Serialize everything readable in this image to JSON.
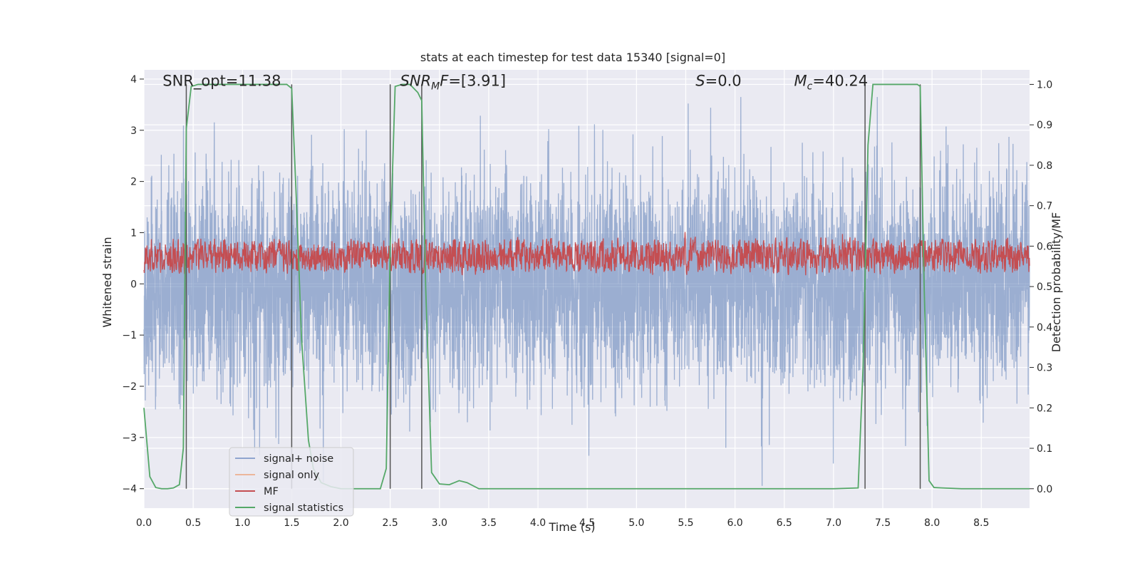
{
  "chart_data": {
    "type": "line",
    "title": "stats at each timestep for test data 15340 [signal=0]",
    "xlabel": "Time (s)",
    "ylabel": "Whitened strain",
    "ylabel_right": "Detection probability/MF",
    "xlim": [
      0.0,
      8.99
    ],
    "ylim": [
      -4.38,
      4.18
    ],
    "ylim_right": [
      -0.048,
      1.036
    ],
    "grid": true,
    "legend_placement": "lower-left",
    "x_ticks": [
      "0.0",
      "0.5",
      "1.0",
      "1.5",
      "2.0",
      "2.5",
      "3.0",
      "3.5",
      "4.0",
      "4.5",
      "5.0",
      "5.5",
      "6.0",
      "6.5",
      "7.0",
      "7.5",
      "8.0",
      "8.5"
    ],
    "y_ticks": [
      "−4",
      "−3",
      "−2",
      "−1",
      "0",
      "1",
      "2",
      "3",
      "4"
    ],
    "y_ticks_values": [
      -4,
      -3,
      -2,
      -1,
      0,
      1,
      2,
      3,
      4
    ],
    "y_right_ticks": [
      "0.0",
      "0.1",
      "0.2",
      "0.3",
      "0.4",
      "0.5",
      "0.6",
      "0.7",
      "0.8",
      "0.9",
      "1.0"
    ],
    "annotations": [
      {
        "id": "snr-opt",
        "parts": [
          {
            "t": "SNR_opt=11.38",
            "style": "normal"
          }
        ],
        "x": 0.19,
        "y": 3.87
      },
      {
        "id": "snr-mf",
        "parts": [
          {
            "t": "SNR",
            "style": "italic"
          },
          {
            "t": "M",
            "style": "italic-sub"
          },
          {
            "t": "F",
            "style": "italic"
          },
          {
            "t": "=[3.91]",
            "style": "normal"
          }
        ],
        "x": 2.6,
        "y": 3.87
      },
      {
        "id": "s-value",
        "parts": [
          {
            "t": "S",
            "style": "italic"
          },
          {
            "t": "=0.0",
            "style": "normal"
          }
        ],
        "x": 5.6,
        "y": 3.87
      },
      {
        "id": "mc-value",
        "parts": [
          {
            "t": "M",
            "style": "italic"
          },
          {
            "t": "c",
            "style": "italic-sub"
          },
          {
            "t": "=40.24",
            "style": "normal"
          }
        ],
        "x": 6.6,
        "y": 3.87
      }
    ],
    "vertical_markers": [
      {
        "x": 0.43,
        "y_top": 1.0
      },
      {
        "x": 1.5,
        "y_top": 1.0
      },
      {
        "x": 2.5,
        "y_top": 1.0
      },
      {
        "x": 2.82,
        "y_top": 1.0
      },
      {
        "x": 7.32,
        "y_top": 1.0
      },
      {
        "x": 7.88,
        "y_top": 1.0
      }
    ],
    "series": [
      {
        "name": "signal+ noise",
        "color": "#4c72b0",
        "opacity": 0.5,
        "axis": "left",
        "description": "white-noise strain, approximately Gaussian with std ~1.0, sampled ~2048 Hz, range about -3.9 to 3.6"
      },
      {
        "name": "signal only",
        "color": "#dd8452",
        "opacity": 0.5,
        "axis": "left",
        "values": []
      },
      {
        "name": "MF",
        "color": "#c44e52",
        "axis": "right",
        "description": "matched-filter output fluctuating between about 0.52 and 0.63 on the right axis"
      },
      {
        "name": "signal statistics",
        "color": "#55a868",
        "axis": "right",
        "x": [
          0.0,
          0.06,
          0.12,
          0.18,
          0.24,
          0.3,
          0.36,
          0.4,
          0.43,
          0.48,
          0.55,
          0.7,
          1.0,
          1.3,
          1.45,
          1.5,
          1.55,
          1.6,
          1.67,
          1.72,
          1.8,
          1.9,
          2.0,
          2.2,
          2.4,
          2.46,
          2.5,
          2.55,
          2.62,
          2.7,
          2.78,
          2.82,
          2.86,
          2.92,
          3.0,
          3.1,
          3.2,
          3.28,
          3.4,
          3.6,
          4.0,
          5.0,
          6.0,
          7.0,
          7.25,
          7.3,
          7.35,
          7.4,
          7.5,
          7.7,
          7.85,
          7.88,
          7.92,
          7.97,
          8.02,
          8.1,
          8.3,
          8.6,
          8.99
        ],
        "y": [
          0.2,
          0.03,
          0.003,
          0.0,
          0.0,
          0.002,
          0.01,
          0.1,
          0.89,
          0.995,
          1.0,
          1.0,
          1.0,
          1.0,
          1.0,
          0.99,
          0.7,
          0.37,
          0.12,
          0.05,
          0.015,
          0.005,
          0.0,
          0.0,
          0.0,
          0.05,
          0.6,
          0.995,
          1.0,
          1.0,
          0.98,
          0.96,
          0.5,
          0.04,
          0.012,
          0.01,
          0.02,
          0.015,
          0.0,
          0.0,
          0.0,
          0.0,
          0.0,
          0.0,
          0.002,
          0.3,
          0.85,
          1.0,
          1.0,
          1.0,
          1.0,
          0.995,
          0.5,
          0.02,
          0.003,
          0.002,
          0.0,
          0.0,
          0.0
        ]
      }
    ]
  },
  "legend": {
    "items": [
      {
        "label": "signal+ noise",
        "color": "#8fa5cf"
      },
      {
        "label": "signal only",
        "color": "#ecb69b"
      },
      {
        "label": "MF",
        "color": "#c44e52"
      },
      {
        "label": "signal statistics",
        "color": "#55a868"
      }
    ]
  },
  "style": {
    "axes_face": "#eaeaf2",
    "grid_color": "#ffffff",
    "text_color": "#262626",
    "marker_line_color": "#555555"
  }
}
